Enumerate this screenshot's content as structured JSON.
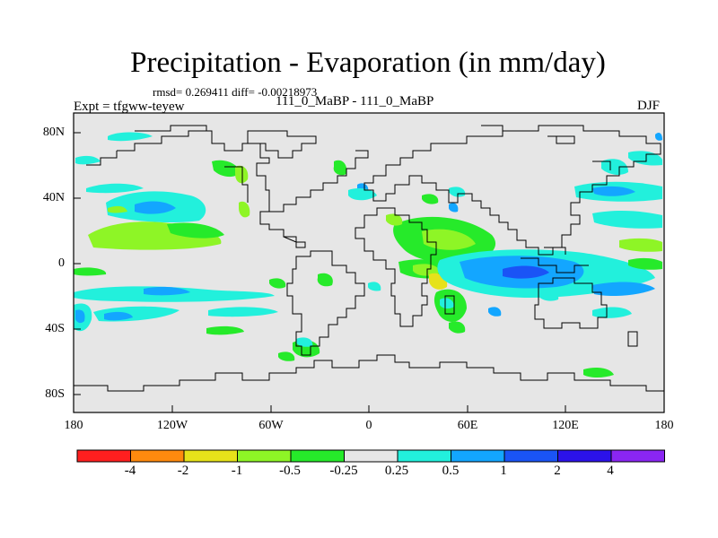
{
  "plot": {
    "title": "Precipitation - Evaporation (in mm/day)",
    "stats": "rmsd= 0.269411 diff= -0.00218973",
    "experiment": "Expt = tfgww-teyew",
    "subtitle": "111_0_MaBP - 111_0_MaBP",
    "season": "DJF"
  },
  "axes": {
    "latitude_labels": [
      "80N",
      "40N",
      "0",
      "40S",
      "80S"
    ],
    "longitude_labels": [
      "180",
      "120W",
      "60W",
      "0",
      "60E",
      "120E",
      "180"
    ]
  },
  "colorbar": {
    "labels": [
      "-4",
      "-2",
      "-1",
      "-0.5",
      "-0.25",
      "0.25",
      "0.5",
      "1",
      "2",
      "4"
    ],
    "colors": [
      "#ff1f1f",
      "#ff8a0e",
      "#e6e21a",
      "#8ef526",
      "#26ea2a",
      "#e6e6e6",
      "#22f0dc",
      "#13a6ff",
      "#1a54f6",
      "#2b12ea",
      "#8a26f2"
    ]
  },
  "map_colors": {
    "background": "#e6e6e6",
    "green_light": "#8ef526",
    "green": "#26ea2a",
    "yellow": "#e6e21a",
    "cyan": "#22f0dc",
    "blue_light": "#13a6ff",
    "blue": "#1a54f6"
  }
}
